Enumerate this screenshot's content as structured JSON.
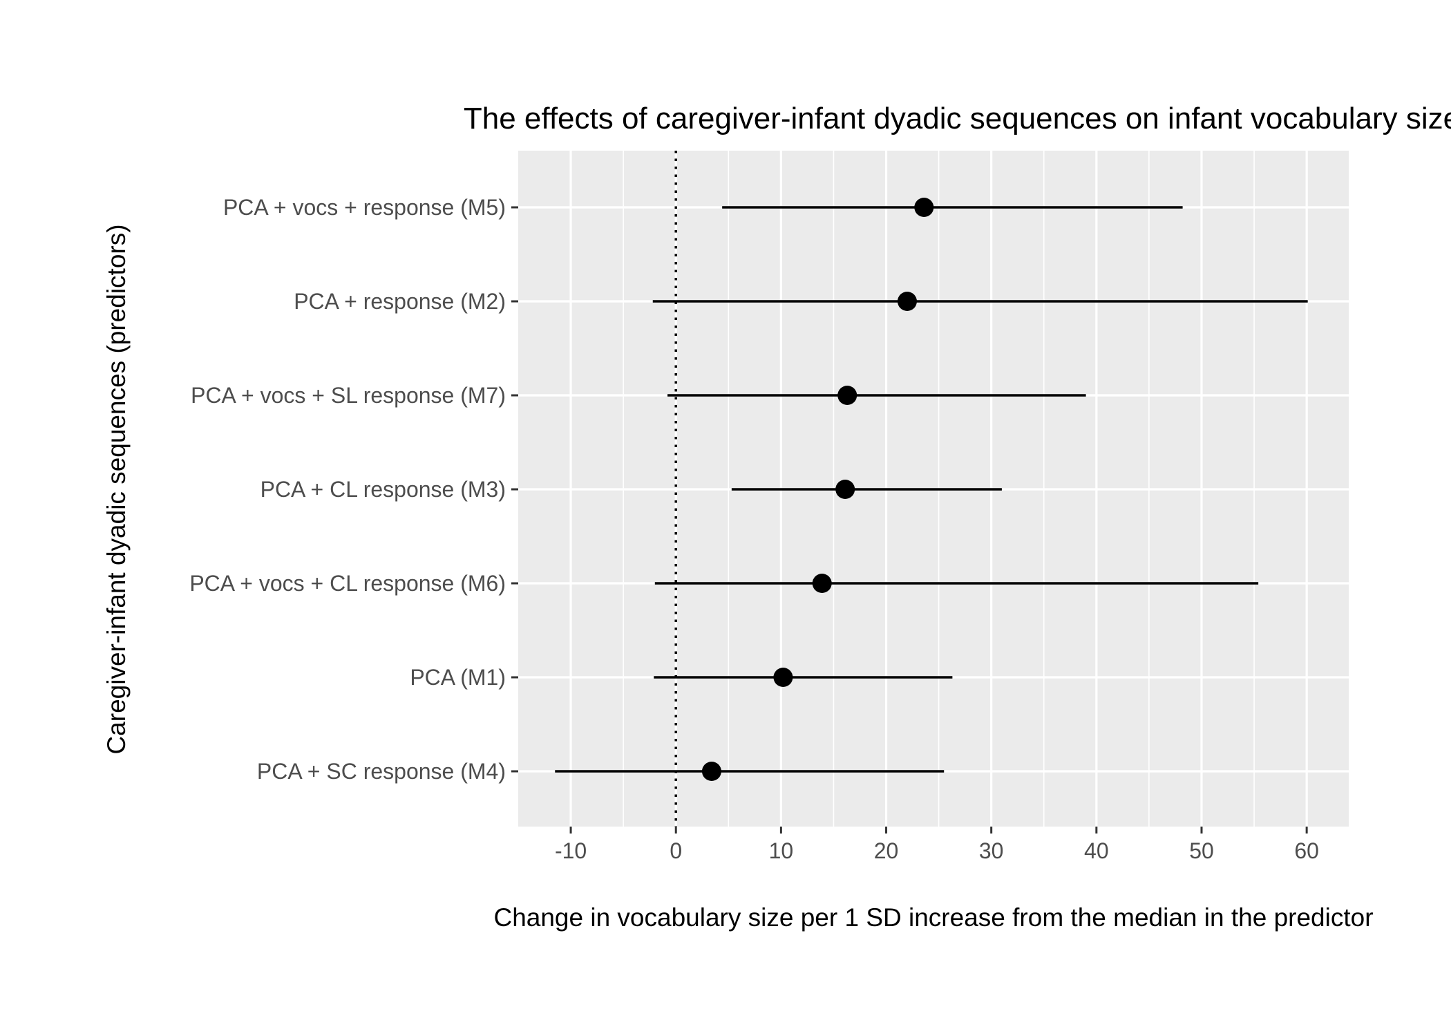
{
  "chart_data": {
    "type": "forest",
    "title": "The effects of caregiver-infant dyadic sequences on infant vocabulary size",
    "xlabel": "Change in vocabulary size per 1 SD increase from the median in the predictor",
    "ylabel": "Caregiver-infant dyadic sequences (predictors)",
    "xlim": [
      -15,
      64
    ],
    "x_ticks": [
      -10,
      0,
      10,
      20,
      30,
      40,
      50,
      60
    ],
    "x_tick_labels": [
      "-10",
      "0",
      "10",
      "20",
      "30",
      "40",
      "50",
      "60"
    ],
    "reference_line": {
      "x": 0,
      "style": "dotted"
    },
    "grid": true,
    "rows": [
      {
        "label": "PCA + vocs + response (M5)",
        "estimate": 23.6,
        "lower": 4.4,
        "upper": 48.2
      },
      {
        "label": "PCA + response (M2)",
        "estimate": 22.0,
        "lower": -2.2,
        "upper": 60.1
      },
      {
        "label": "PCA + vocs + SL response (M7)",
        "estimate": 16.3,
        "lower": -0.8,
        "upper": 39.0
      },
      {
        "label": "PCA + CL response (M3)",
        "estimate": 16.1,
        "lower": 5.3,
        "upper": 31.0
      },
      {
        "label": "PCA + vocs + CL response (M6)",
        "estimate": 13.9,
        "lower": -2.0,
        "upper": 55.4
      },
      {
        "label": "PCA (M1)",
        "estimate": 10.2,
        "lower": -2.1,
        "upper": 26.3
      },
      {
        "label": "PCA + SC response (M4)",
        "estimate": 3.4,
        "lower": -11.5,
        "upper": 25.5
      }
    ]
  }
}
